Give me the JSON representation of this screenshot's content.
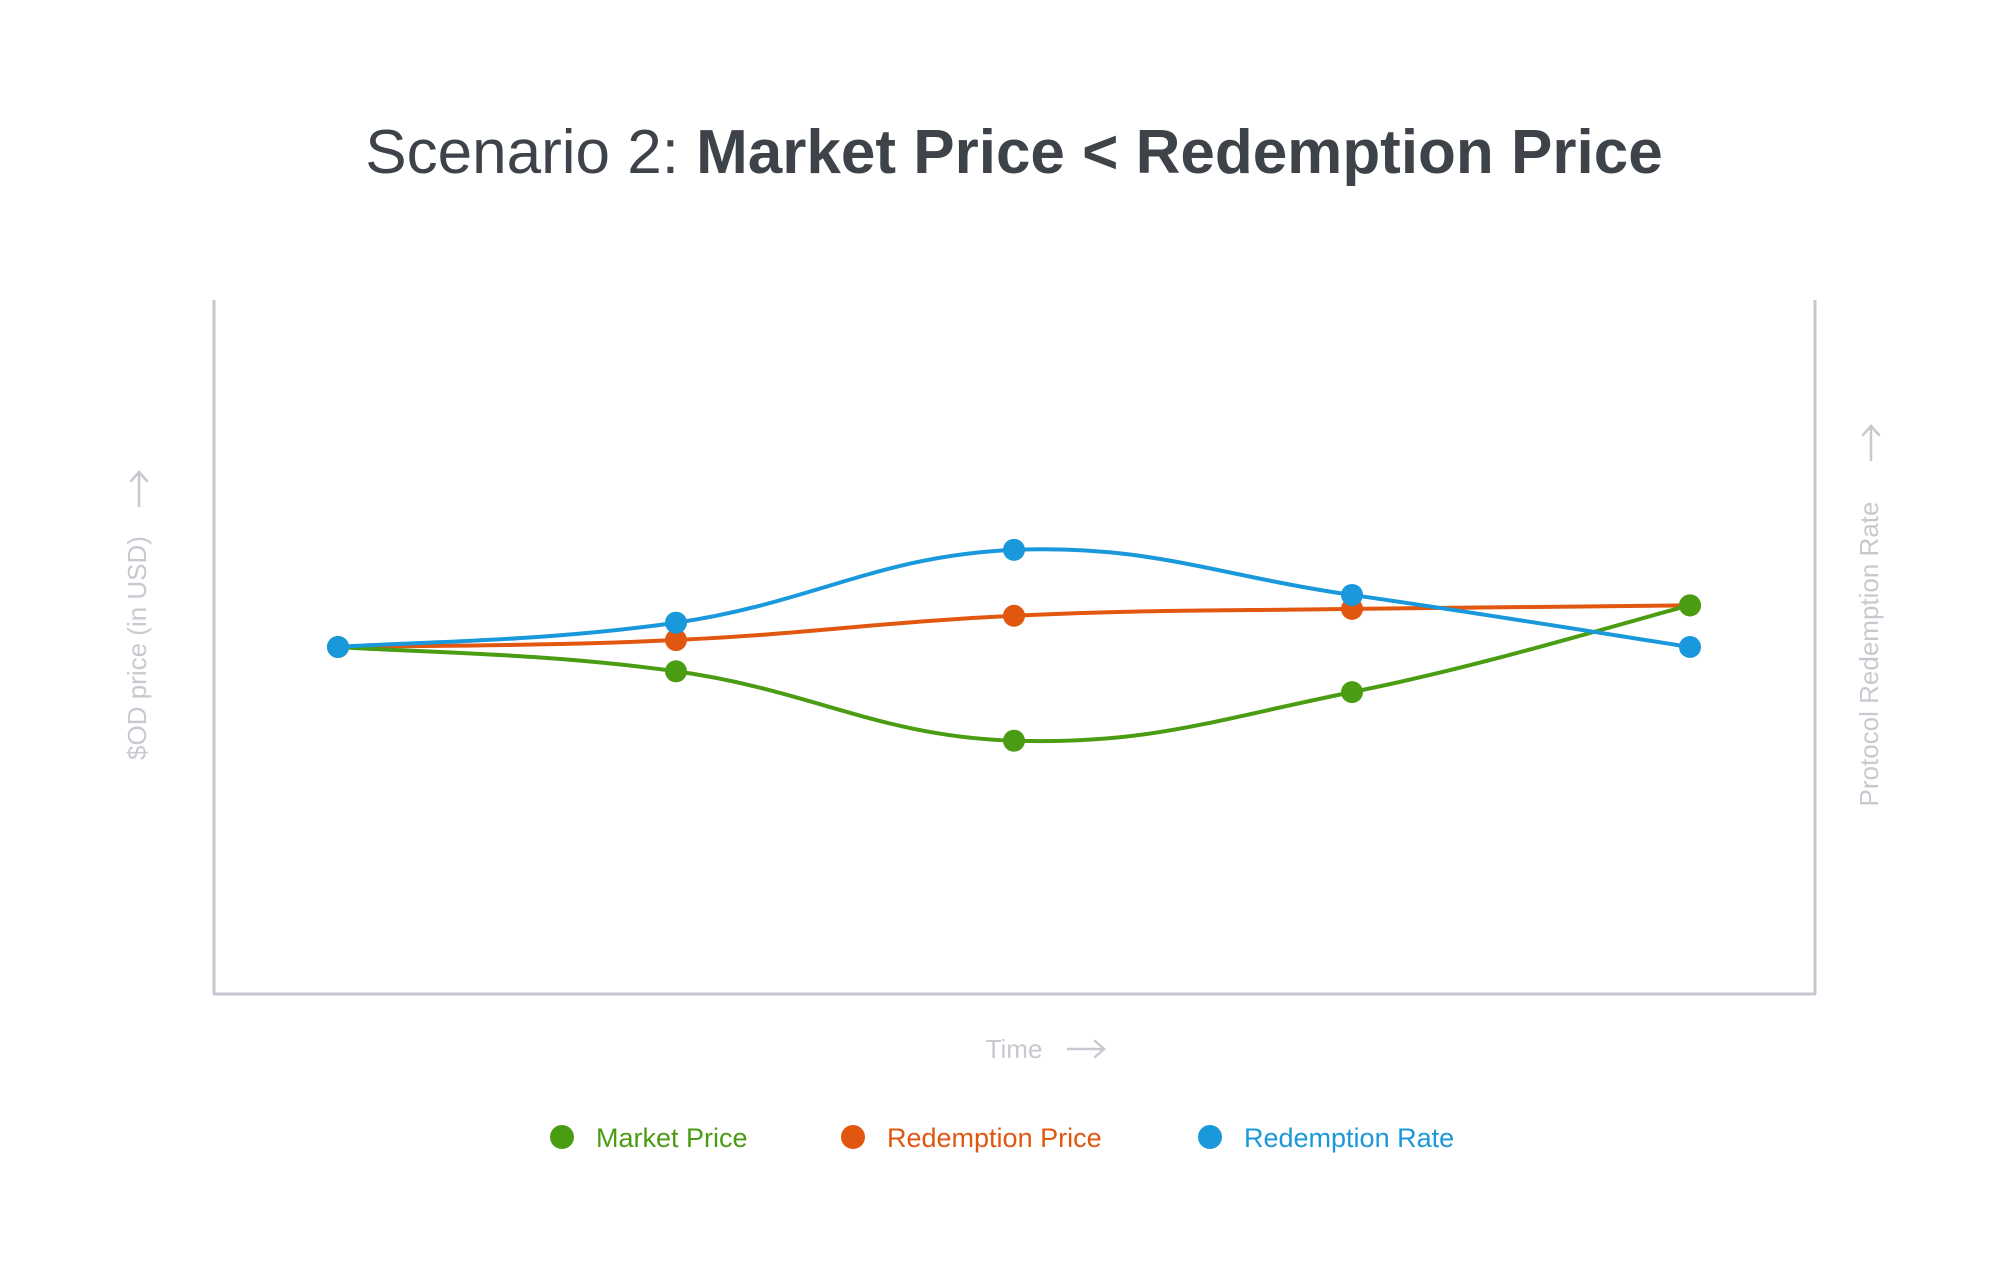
{
  "chart_data": {
    "type": "line",
    "title_prefix": "Scenario 2: ",
    "title_main": "Market Price < Redemption Price",
    "xlabel": "Time",
    "ylabel": "$OD price (in USD)",
    "y2label": "Protocol Redemption Rate",
    "x": [
      1,
      2,
      3,
      4,
      5
    ],
    "ylim": [
      0,
      100
    ],
    "grid": false,
    "legend_position": "bottom",
    "series": [
      {
        "name": "Market Price",
        "color": "#4a9c12",
        "values": [
          50,
          46.5,
          36.5,
          43.5,
          56
        ]
      },
      {
        "name": "Redemption Price",
        "color": "#e2570f",
        "values": [
          50,
          51,
          54.5,
          55.5,
          56
        ]
      },
      {
        "name": "Redemption Rate",
        "color": "#1a98dc",
        "values": [
          50,
          53.5,
          64,
          57.5,
          50
        ]
      }
    ],
    "colors": {
      "axis": "#c4c8d2",
      "label": "#c6c9cf",
      "title": "#3e4249"
    }
  }
}
